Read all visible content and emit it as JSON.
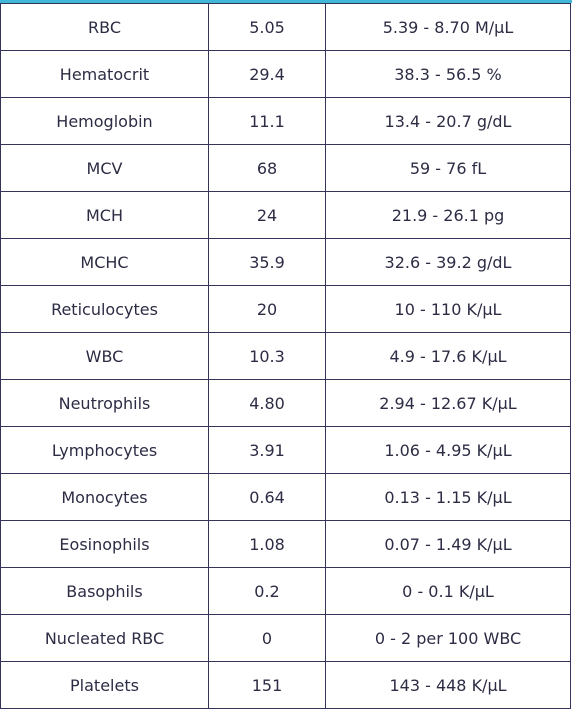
{
  "table": {
    "rows": [
      {
        "test": "RBC",
        "value": "5.05",
        "range": "5.39 - 8.70 M/µL"
      },
      {
        "test": "Hematocrit",
        "value": "29.4",
        "range": "38.3 - 56.5 %"
      },
      {
        "test": "Hemoglobin",
        "value": "11.1",
        "range": "13.4 - 20.7 g/dL"
      },
      {
        "test": "MCV",
        "value": "68",
        "range": "59 - 76 fL"
      },
      {
        "test": "MCH",
        "value": "24",
        "range": "21.9 - 26.1 pg"
      },
      {
        "test": "MCHC",
        "value": "35.9",
        "range": "32.6 - 39.2 g/dL"
      },
      {
        "test": "Reticulocytes",
        "value": "20",
        "range": "10 - 110 K/µL"
      },
      {
        "test": "WBC",
        "value": "10.3",
        "range": "4.9 - 17.6 K/µL"
      },
      {
        "test": "Neutrophils",
        "value": "4.80",
        "range": "2.94 - 12.67 K/µL"
      },
      {
        "test": "Lymphocytes",
        "value": "3.91",
        "range": "1.06 - 4.95 K/µL"
      },
      {
        "test": "Monocytes",
        "value": "0.64",
        "range": "0.13 - 1.15 K/µL"
      },
      {
        "test": "Eosinophils",
        "value": "1.08",
        "range": "0.07 - 1.49 K/µL"
      },
      {
        "test": "Basophils",
        "value": "0.2",
        "range": "0 - 0.1 K/µL"
      },
      {
        "test": "Nucleated RBC",
        "value": "0",
        "range": "0 - 2 per 100 WBC"
      },
      {
        "test": "Platelets",
        "value": "151",
        "range": "143 - 448 K/µL"
      }
    ]
  }
}
